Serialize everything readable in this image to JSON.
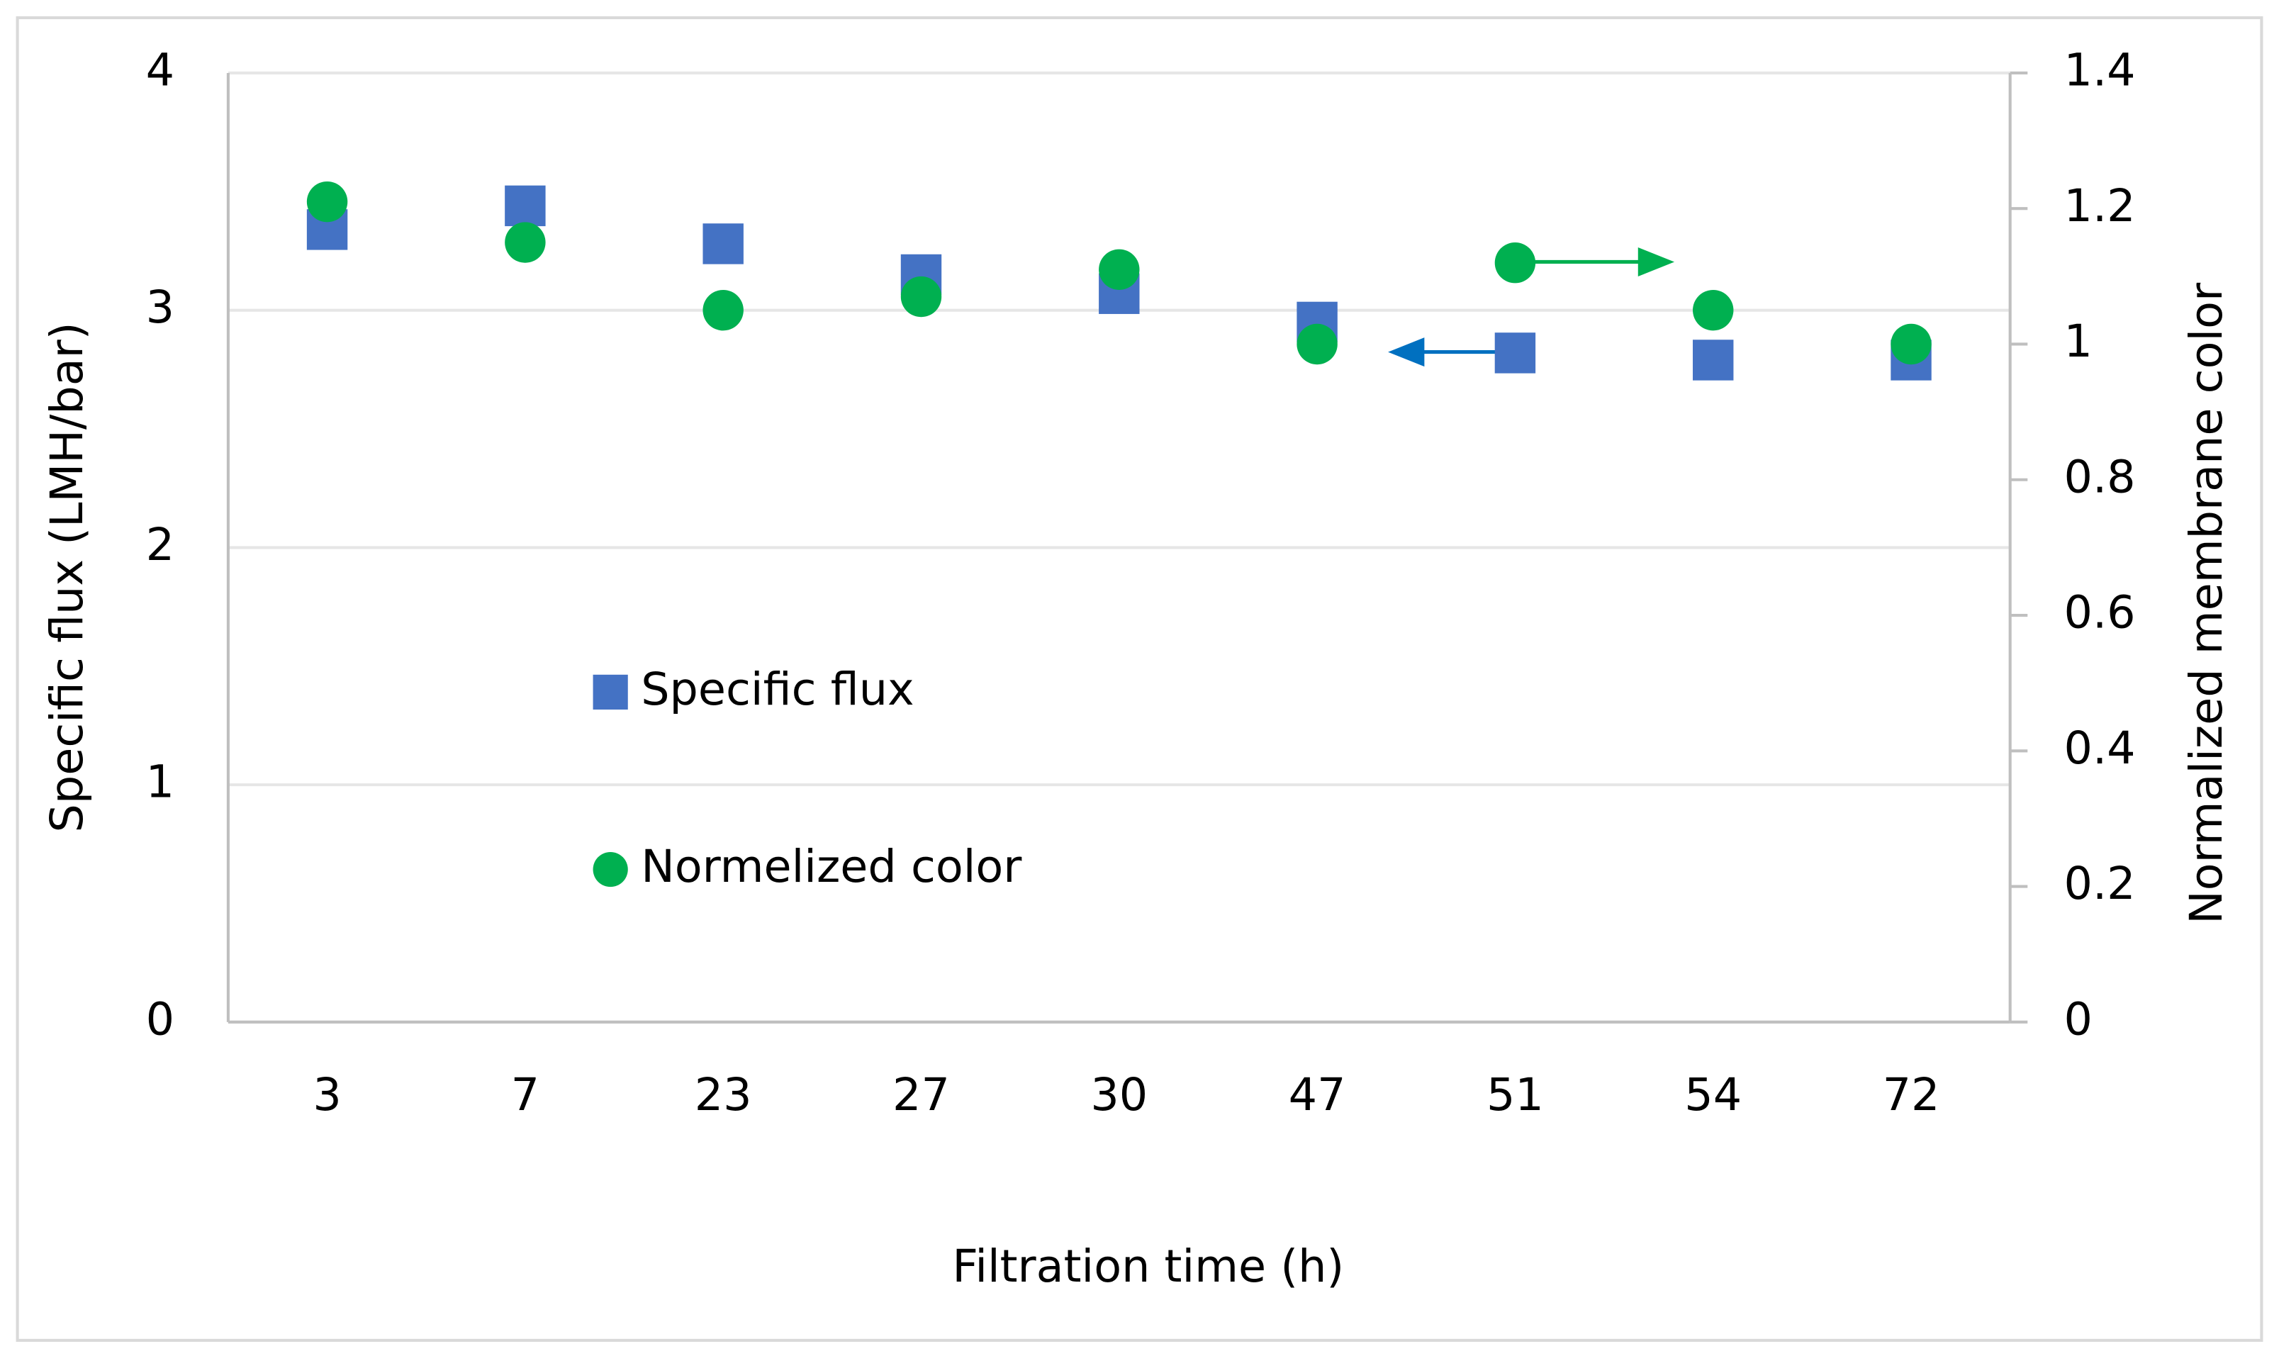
{
  "chart_data": {
    "type": "scatter",
    "x_label": "Filtration time (h)",
    "y_label": "Specific flux (LMH/bar)",
    "y2_label": "Normalized membrane color",
    "categories": [
      "3",
      "7",
      "23",
      "27",
      "30",
      "47",
      "51",
      "54",
      "72"
    ],
    "ylim": [
      0,
      4
    ],
    "yticks": [
      0,
      1,
      2,
      3,
      4
    ],
    "y2lim": [
      0,
      1.4
    ],
    "y2ticks": [
      0,
      0.2,
      0.4,
      0.6,
      0.8,
      1,
      1.2,
      1.4
    ],
    "grid": true,
    "series": [
      {
        "name": "Specific flux",
        "color": "#4472c4",
        "marker": "square",
        "values": [
          3.34,
          3.44,
          3.28,
          3.15,
          3.07,
          2.95,
          2.82,
          2.79,
          2.79
        ]
      },
      {
        "name": "Normelized color",
        "color": "#00b050",
        "marker": "circle",
        "axis": "y2",
        "values": [
          1.21,
          1.15,
          1.05,
          1.07,
          1.11,
          1.0,
          1.12,
          1.05,
          1.0
        ]
      }
    ]
  }
}
